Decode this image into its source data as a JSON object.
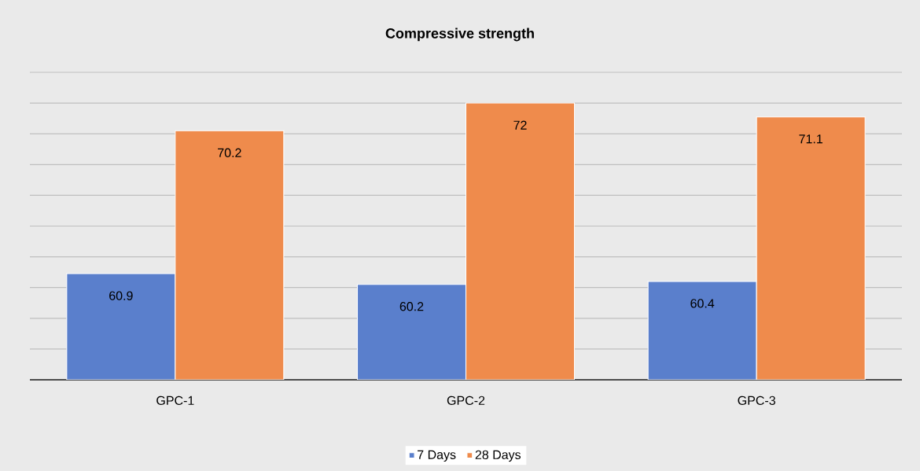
{
  "chart_data": {
    "type": "bar",
    "title": "Compressive strength",
    "categories": [
      "GPC-1",
      "GPC-2",
      "GPC-3"
    ],
    "series": [
      {
        "name": "7 Days",
        "color": "#5a7fcc",
        "values": [
          60.9,
          60.2,
          60.4
        ]
      },
      {
        "name": "28 Days",
        "color": "#ef8b4c",
        "values": [
          70.2,
          72,
          71.1
        ]
      }
    ],
    "ylim": [
      54,
      74
    ],
    "yticks": [
      {
        "value": 54,
        "label": null
      },
      {
        "value": 56,
        "label": null
      },
      {
        "value": 58,
        "label": null
      },
      {
        "value": 60,
        "label": null
      },
      {
        "value": 62,
        "label": null
      },
      {
        "value": 64,
        "label": null
      },
      {
        "value": 66,
        "label": null
      },
      {
        "value": 68,
        "label": null
      },
      {
        "value": 70,
        "label": null
      },
      {
        "value": 72,
        "label": null
      },
      {
        "value": 74,
        "label": null
      }
    ],
    "grid": "y",
    "data_labels": true,
    "legend": "bottom"
  }
}
